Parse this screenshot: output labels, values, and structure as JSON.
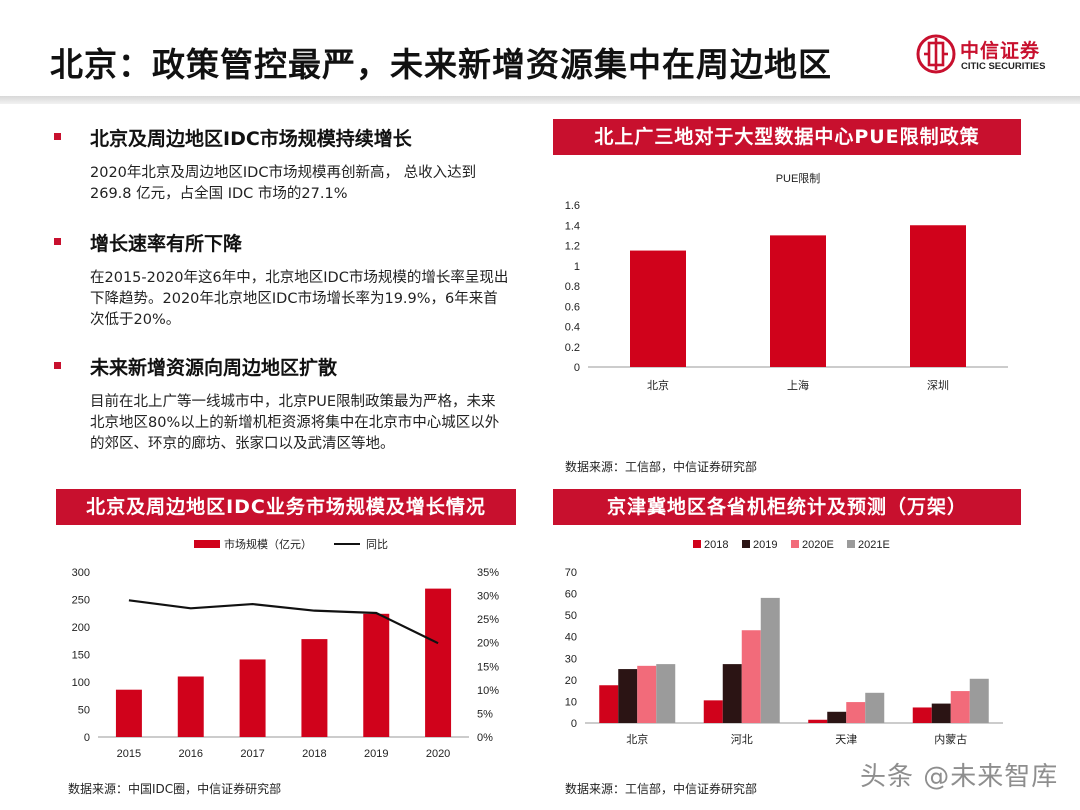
{
  "header": {
    "title": "北京：政策管控最严，未来新增资源集中在周边地区",
    "logo_cn": "中信证券",
    "logo_en": "CITIC SECURITIES"
  },
  "bullets": [
    {
      "title": "北京及周边地区IDC市场规模持续增长",
      "text": "2020年北京及周边地区IDC市场规模再创新高， 总收入达到269.8 亿元，占全国 IDC 市场的27.1%"
    },
    {
      "title": "增长速率有所下降",
      "text": "在2015-2020年这6年中，北京地区IDC市场规模的增长率呈现出下降趋势。2020年北京地区IDC市场增长率为19.9%，6年来首次低于20%。"
    },
    {
      "title": "未来新增资源向周边地区扩散",
      "text": "目前在北上广等一线城市中，北京PUE限制政策最为严格，未来北京地区80%以上的新增机柜资源将集中在北京市中心城区以外的郊区、环京的廊坊、张家口以及武清区等地。"
    }
  ],
  "panels": {
    "pue": {
      "title": "北上广三地对于大型数据中心PUE限制政策",
      "source": "数据来源：工信部，中信证券研究部"
    },
    "idc": {
      "title": "北京及周边地区IDC业务市场规模及增长情况",
      "source": "数据来源：中国IDC圈，中信证券研究部"
    },
    "cabinet": {
      "title": "京津冀地区各省机柜统计及预测（万架）",
      "source": "数据来源：工信部，中信证券研究部"
    }
  },
  "watermark": "头条 @未来智库",
  "chart_data": [
    {
      "type": "bar",
      "title": "PUE限制",
      "categories": [
        "北京",
        "上海",
        "深圳"
      ],
      "values": [
        1.15,
        1.3,
        1.4
      ],
      "ylim": [
        0,
        1.6
      ],
      "yticks": [
        "0",
        "0.2",
        "0.4",
        "0.6",
        "0.8",
        "1",
        "1.2",
        "1.4",
        "1.6"
      ],
      "grid": false,
      "color": "#d0021b"
    },
    {
      "type": "bar",
      "title": "",
      "categories": [
        "2015",
        "2016",
        "2017",
        "2018",
        "2019",
        "2020"
      ],
      "series": [
        {
          "name": "市场规模（亿元）",
          "type": "bar",
          "axis": "left",
          "values": [
            86,
            110,
            141,
            178,
            224,
            269.8
          ],
          "color": "#d0021b"
        },
        {
          "name": "同比",
          "type": "line",
          "axis": "right",
          "values": [
            29,
            27.3,
            28.2,
            26.8,
            26.3,
            19.9
          ],
          "color": "#111111"
        }
      ],
      "ylim": [
        0,
        300
      ],
      "yticks": [
        "0",
        "50",
        "100",
        "150",
        "200",
        "250",
        "300"
      ],
      "y2lim": [
        0,
        35
      ],
      "y2ticks": [
        "0%",
        "5%",
        "10%",
        "15%",
        "20%",
        "25%",
        "30%",
        "35%"
      ],
      "legend": "top-center",
      "grid": false
    },
    {
      "type": "bar",
      "title": "",
      "categories": [
        "北京",
        "河北",
        "天津",
        "内蒙古"
      ],
      "series": [
        {
          "name": "2018",
          "values": [
            17.5,
            10.5,
            1.5,
            7.2
          ],
          "color": "#d0021b"
        },
        {
          "name": "2019",
          "values": [
            25,
            27.3,
            5.2,
            9
          ],
          "color": "#2b1414"
        },
        {
          "name": "2020E",
          "values": [
            26.5,
            43,
            9.7,
            14.8
          ],
          "color": "#f26b7a"
        },
        {
          "name": "2021E",
          "values": [
            27.3,
            58,
            14,
            20.5
          ],
          "color": "#9b9b9b"
        }
      ],
      "ylim": [
        0,
        70
      ],
      "yticks": [
        "0",
        "10",
        "20",
        "30",
        "40",
        "50",
        "60",
        "70"
      ],
      "legend": "top-center",
      "grid": false
    }
  ]
}
